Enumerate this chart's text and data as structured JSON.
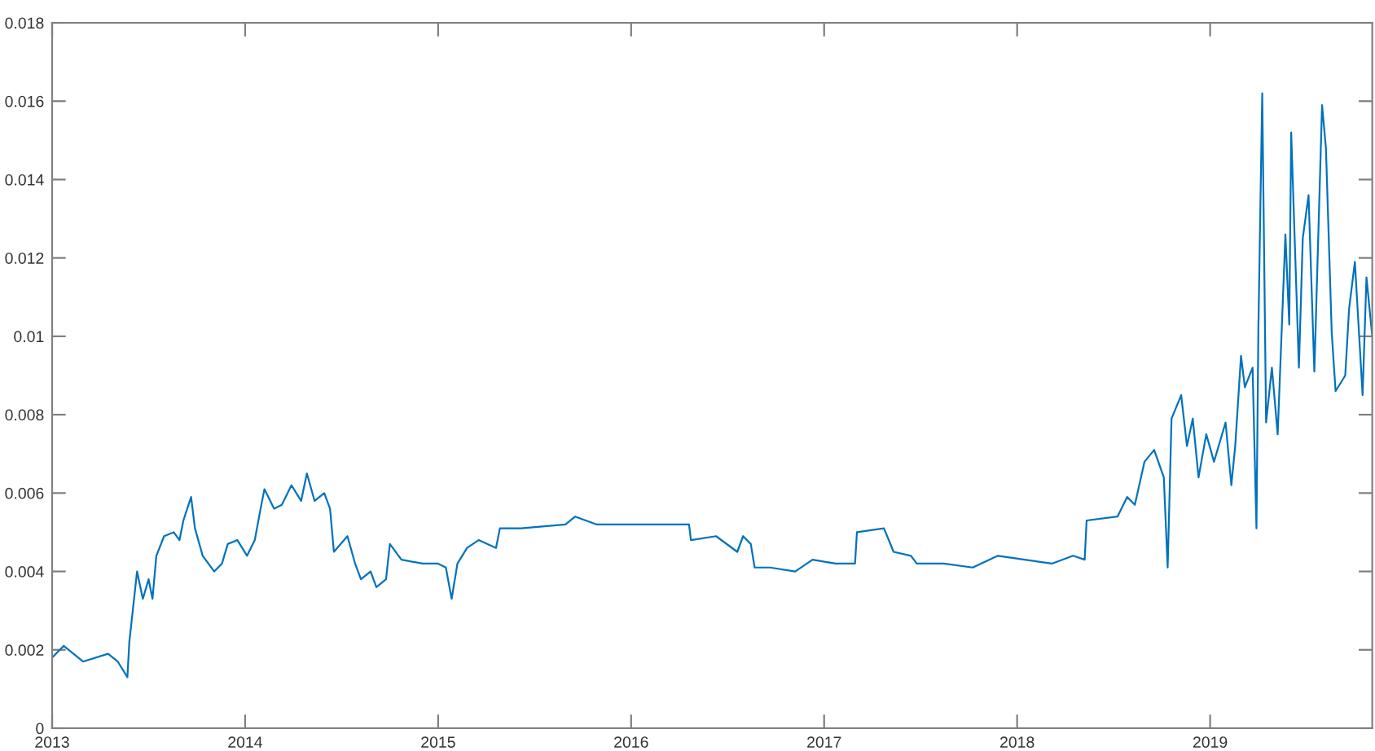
{
  "chart_data": {
    "type": "line",
    "x": [
      2013.0,
      2013.04,
      2013.06,
      2013.16,
      2013.29,
      2013.34,
      2013.39,
      2013.4,
      2013.44,
      2013.47,
      2013.5,
      2013.52,
      2013.54,
      2013.58,
      2013.63,
      2013.66,
      2013.68,
      2013.72,
      2013.74,
      2013.78,
      2013.84,
      2013.88,
      2013.91,
      2013.96,
      2014.01,
      2014.05,
      2014.08,
      2014.1,
      2014.15,
      2014.19,
      2014.24,
      2014.29,
      2014.32,
      2014.36,
      2014.41,
      2014.44,
      2014.46,
      2014.53,
      2014.57,
      2014.6,
      2014.65,
      2014.68,
      2014.73,
      2014.75,
      2014.81,
      2014.92,
      2015.0,
      2015.04,
      2015.07,
      2015.1,
      2015.15,
      2015.21,
      2015.3,
      2015.32,
      2015.43,
      2015.66,
      2015.71,
      2015.82,
      2016.02,
      2016.22,
      2016.3,
      2016.31,
      2016.44,
      2016.55,
      2016.58,
      2016.62,
      2016.64,
      2016.72,
      2016.85,
      2016.94,
      2017.06,
      2017.16,
      2017.17,
      2017.31,
      2017.36,
      2017.45,
      2017.48,
      2017.62,
      2017.77,
      2017.9,
      2018.04,
      2018.18,
      2018.29,
      2018.35,
      2018.36,
      2018.52,
      2018.57,
      2018.61,
      2018.66,
      2018.71,
      2018.76,
      2018.78,
      2018.8,
      2018.85,
      2018.88,
      2018.91,
      2018.94,
      2018.98,
      2019.02,
      2019.08,
      2019.11,
      2019.13,
      2019.16,
      2019.18,
      2019.22,
      2019.24,
      2019.25,
      2019.27,
      2019.29,
      2019.32,
      2019.35,
      2019.39,
      2019.41,
      2019.42,
      2019.46,
      2019.48,
      2019.51,
      2019.54,
      2019.58,
      2019.6,
      2019.63,
      2019.65,
      2019.7,
      2019.72,
      2019.75,
      2019.79,
      2019.81,
      2019.84
    ],
    "series": [
      {
        "color": "#0072bd",
        "values": [
          0.0018,
          0.002,
          0.0021,
          0.0017,
          0.0019,
          0.0017,
          0.0013,
          0.0022,
          0.004,
          0.0033,
          0.0038,
          0.0033,
          0.0044,
          0.0049,
          0.005,
          0.0048,
          0.0053,
          0.0059,
          0.0051,
          0.0044,
          0.004,
          0.0042,
          0.0047,
          0.0048,
          0.0044,
          0.0048,
          0.0056,
          0.0061,
          0.0056,
          0.0057,
          0.0062,
          0.0058,
          0.0065,
          0.0058,
          0.006,
          0.0056,
          0.0045,
          0.0049,
          0.0042,
          0.0038,
          0.004,
          0.0036,
          0.0038,
          0.0047,
          0.0043,
          0.0042,
          0.0042,
          0.0041,
          0.0033,
          0.0042,
          0.0046,
          0.0048,
          0.0046,
          0.0051,
          0.0051,
          0.0052,
          0.0054,
          0.0052,
          0.0052,
          0.0052,
          0.0052,
          0.0048,
          0.0049,
          0.0045,
          0.0049,
          0.0047,
          0.0041,
          0.0041,
          0.004,
          0.0043,
          0.0042,
          0.0042,
          0.005,
          0.0051,
          0.0045,
          0.0044,
          0.0042,
          0.0042,
          0.0041,
          0.0044,
          0.0043,
          0.0042,
          0.0044,
          0.0043,
          0.0053,
          0.0054,
          0.0059,
          0.0057,
          0.0068,
          0.0071,
          0.0064,
          0.0041,
          0.0079,
          0.0085,
          0.0072,
          0.0079,
          0.0064,
          0.0075,
          0.0068,
          0.0078,
          0.0062,
          0.0072,
          0.0095,
          0.0087,
          0.0092,
          0.0051,
          0.0102,
          0.0162,
          0.0078,
          0.0092,
          0.0075,
          0.0126,
          0.0103,
          0.0152,
          0.0092,
          0.0125,
          0.0136,
          0.0091,
          0.0159,
          0.0148,
          0.0101,
          0.0086,
          0.009,
          0.0107,
          0.0119,
          0.0085,
          0.0115,
          0.01
        ]
      }
    ],
    "xlim": [
      2013,
      2019.84
    ],
    "xticks": [
      2013,
      2014,
      2015,
      2016,
      2017,
      2018,
      2019
    ],
    "ylim": [
      0,
      0.018
    ],
    "yticks": [
      0,
      0.002,
      0.004,
      0.006,
      0.008,
      0.01,
      0.012,
      0.014,
      0.016,
      0.018
    ],
    "grid": false,
    "marker": "none",
    "line_style": "solid"
  }
}
